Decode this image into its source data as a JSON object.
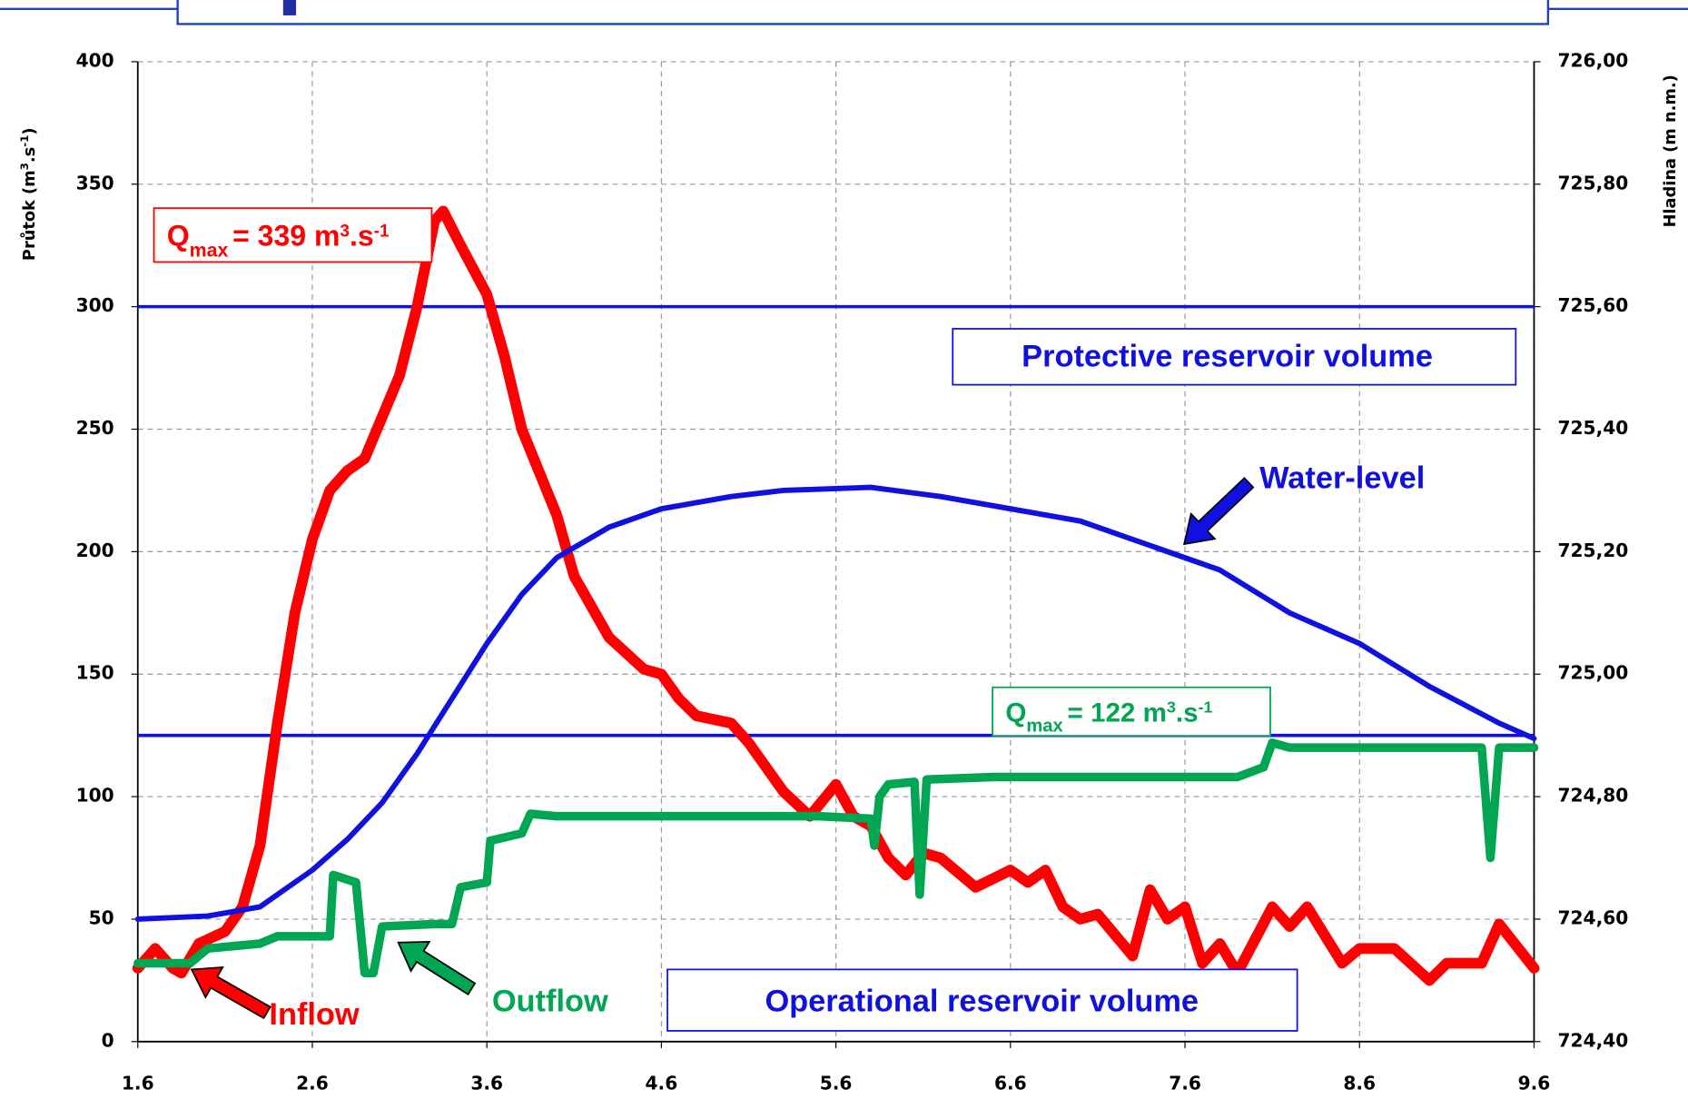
{
  "chart_data": {
    "type": "line",
    "y_label_parts": [
      "Průtok (m",
      "3",
      ".s",
      "-1",
      ")"
    ],
    "y2_label": "Hladina (m n.m.)",
    "xlim": [
      1.6,
      9.6
    ],
    "xticks": [
      1.6,
      2.6,
      3.6,
      4.6,
      5.6,
      6.6,
      7.6,
      8.6,
      9.6
    ],
    "ylim": [
      0,
      400
    ],
    "yticks": [
      0,
      50,
      100,
      150,
      200,
      250,
      300,
      350,
      400
    ],
    "y2lim": [
      724.4,
      726.0
    ],
    "y2ticks": [
      {
        "value": 724.4,
        "label": "724,40"
      },
      {
        "value": 724.6,
        "label": "724,60"
      },
      {
        "value": 724.8,
        "label": "724,80"
      },
      {
        "value": 725.0,
        "label": "725,00"
      },
      {
        "value": 725.2,
        "label": "725,20"
      },
      {
        "value": 725.4,
        "label": "725,40"
      },
      {
        "value": 725.6,
        "label": "725,60"
      },
      {
        "value": 725.8,
        "label": "725,80"
      },
      {
        "value": 726.0,
        "label": "726,00"
      }
    ],
    "grid": true,
    "hlines": [
      300,
      125
    ],
    "hline_color": "#1010e0",
    "series": [
      {
        "name": "Inflow",
        "color": "#ff0000",
        "x": [
          1.6,
          1.7,
          1.8,
          1.85,
          1.95,
          2.1,
          2.2,
          2.3,
          2.4,
          2.5,
          2.6,
          2.7,
          2.8,
          2.9,
          3.0,
          3.1,
          3.2,
          3.3,
          3.35,
          3.45,
          3.6,
          3.7,
          3.8,
          4.0,
          4.1,
          4.3,
          4.5,
          4.6,
          4.7,
          4.8,
          5.0,
          5.1,
          5.3,
          5.45,
          5.6,
          5.7,
          5.8,
          5.9,
          6.0,
          6.1,
          6.2,
          6.4,
          6.6,
          6.7,
          6.8,
          6.9,
          7.0,
          7.1,
          7.3,
          7.4,
          7.5,
          7.6,
          7.7,
          7.8,
          7.9,
          8.1,
          8.2,
          8.3,
          8.5,
          8.6,
          8.8,
          9.0,
          9.1,
          9.3,
          9.4,
          9.6
        ],
        "values": [
          30,
          38,
          30,
          28,
          40,
          45,
          55,
          80,
          130,
          175,
          205,
          225,
          233,
          238,
          255,
          272,
          300,
          335,
          339,
          325,
          305,
          280,
          250,
          215,
          190,
          165,
          152,
          150,
          140,
          133,
          130,
          122,
          102,
          92,
          105,
          92,
          88,
          75,
          68,
          77,
          75,
          63,
          70,
          65,
          70,
          55,
          50,
          52,
          35,
          62,
          50,
          55,
          32,
          40,
          28,
          55,
          47,
          55,
          32,
          38,
          38,
          25,
          32,
          32,
          48,
          30
        ]
      },
      {
        "name": "Outflow",
        "color": "#00a651",
        "x": [
          1.6,
          1.9,
          2.0,
          2.3,
          2.4,
          2.6,
          2.7,
          2.72,
          2.85,
          2.9,
          2.95,
          3.0,
          3.3,
          3.4,
          3.45,
          3.6,
          3.62,
          3.8,
          3.85,
          4.0,
          4.5,
          5.0,
          5.5,
          5.8,
          5.82,
          5.85,
          5.9,
          6.05,
          6.08,
          6.12,
          6.5,
          7.0,
          7.5,
          7.9,
          8.05,
          8.1,
          8.2,
          8.5,
          9.0,
          9.3,
          9.35,
          9.4,
          9.6
        ],
        "values": [
          32,
          32,
          38,
          40,
          43,
          43,
          43,
          68,
          65,
          28,
          28,
          47,
          48,
          48,
          63,
          65,
          82,
          85,
          93,
          92,
          92,
          92,
          92,
          91,
          80,
          100,
          105,
          106,
          60,
          107,
          108,
          108,
          108,
          108,
          112,
          122,
          120,
          120,
          120,
          120,
          75,
          120,
          120
        ]
      },
      {
        "name": "Water-level",
        "color": "#1010e0",
        "axis": "y2",
        "x": [
          1.6,
          2.0,
          2.3,
          2.4,
          2.6,
          2.8,
          3.0,
          3.2,
          3.4,
          3.6,
          3.8,
          4.0,
          4.3,
          4.6,
          5.0,
          5.3,
          5.8,
          6.2,
          6.6,
          7.0,
          7.4,
          7.8,
          8.2,
          8.6,
          9.0,
          9.4,
          9.6
        ],
        "values": [
          724.6,
          724.605,
          724.62,
          724.64,
          724.68,
          724.73,
          724.79,
          724.87,
          724.96,
          725.05,
          725.13,
          725.19,
          725.24,
          725.27,
          725.29,
          725.3,
          725.305,
          725.29,
          725.27,
          725.25,
          725.21,
          725.17,
          725.1,
          725.05,
          724.98,
          724.92,
          724.895
        ]
      }
    ],
    "annotations": [
      {
        "parts": [
          "Q",
          "max",
          "= 339 m",
          "3",
          ".s",
          "-1"
        ],
        "color": "#ff0000"
      },
      {
        "parts": [
          "Q",
          "max",
          "= 122 m",
          "3",
          ".s",
          "-1"
        ],
        "color": "#00a651"
      },
      {
        "text": "Protective reservoir volume",
        "color": "#1010e0"
      },
      {
        "text": "Operational reservoir volume",
        "color": "#1010e0"
      }
    ]
  }
}
